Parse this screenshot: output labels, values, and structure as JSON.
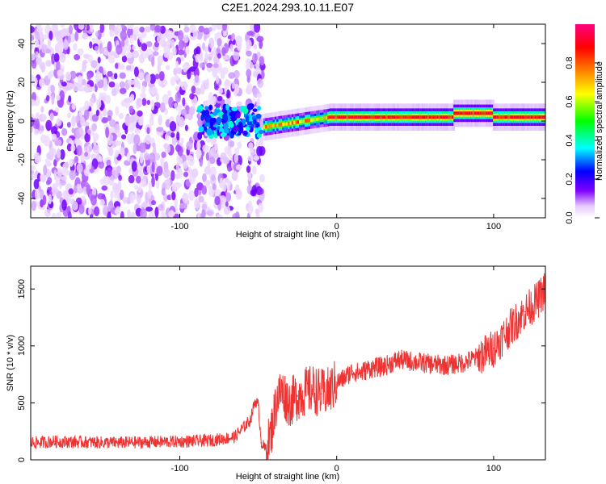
{
  "title": "C2E1.2024.293.10.11.E07",
  "chart_data": [
    {
      "type": "heatmap",
      "xlabel": "Height of straight line (km)",
      "ylabel": "Frequency (Hz)",
      "xlim": [
        -195,
        133
      ],
      "ylim": [
        -50,
        50
      ],
      "x_ticks": [
        "-100",
        "0",
        "100"
      ],
      "y_ticks": [
        "-40",
        "-20",
        "0",
        "20",
        "40"
      ],
      "colorbar": {
        "label": "Normalized spectral amplitude",
        "range": [
          0,
          1
        ],
        "ticks": [
          "0.0",
          "0.2",
          "0.4",
          "0.6",
          "0.8"
        ],
        "colors": [
          "#ffffff",
          "#8000ff",
          "#0000ff",
          "#00ffff",
          "#00ff00",
          "#ffff00",
          "#ff8000",
          "#ff0000",
          "#ff0080"
        ]
      },
      "features": [
        {
          "x_range": [
            -195,
            -47
          ],
          "description_values": "broadband noise",
          "amplitude": 0.1
        },
        {
          "x_range": [
            -88,
            -48
          ],
          "freq_center": 0,
          "amplitude": 0.35
        },
        {
          "x_range": [
            -45,
            133
          ],
          "freq_center": 2,
          "amplitude": 0.9
        }
      ]
    },
    {
      "type": "line",
      "xlabel": "Height of straight line (km)",
      "ylabel": "SNR (10 * v/v)",
      "xlim": [
        -195,
        133
      ],
      "ylim": [
        0,
        1700
      ],
      "x_ticks": [
        "-100",
        "0",
        "100"
      ],
      "y_ticks": [
        "0",
        "500",
        "1000",
        "1500"
      ],
      "line_color": "#ee3333",
      "series": [
        {
          "x": [
            -195,
            -180,
            -160,
            -140,
            -120,
            -100,
            -80,
            -65,
            -55,
            -52,
            -50,
            -48,
            -45,
            -42,
            -38,
            -35,
            -30,
            -25,
            -20,
            -15,
            -10,
            -5,
            0,
            5,
            10,
            15,
            20,
            30,
            40,
            50,
            60,
            70,
            80,
            90,
            100,
            110,
            120,
            128,
            133
          ],
          "values": [
            150,
            160,
            155,
            150,
            155,
            160,
            170,
            200,
            350,
            520,
            480,
            150,
            80,
            220,
            550,
            600,
            500,
            560,
            600,
            620,
            580,
            600,
            680,
            720,
            780,
            760,
            800,
            820,
            880,
            860,
            840,
            830,
            850,
            900,
            980,
            1150,
            1300,
            1400,
            1500
          ]
        }
      ]
    }
  ]
}
